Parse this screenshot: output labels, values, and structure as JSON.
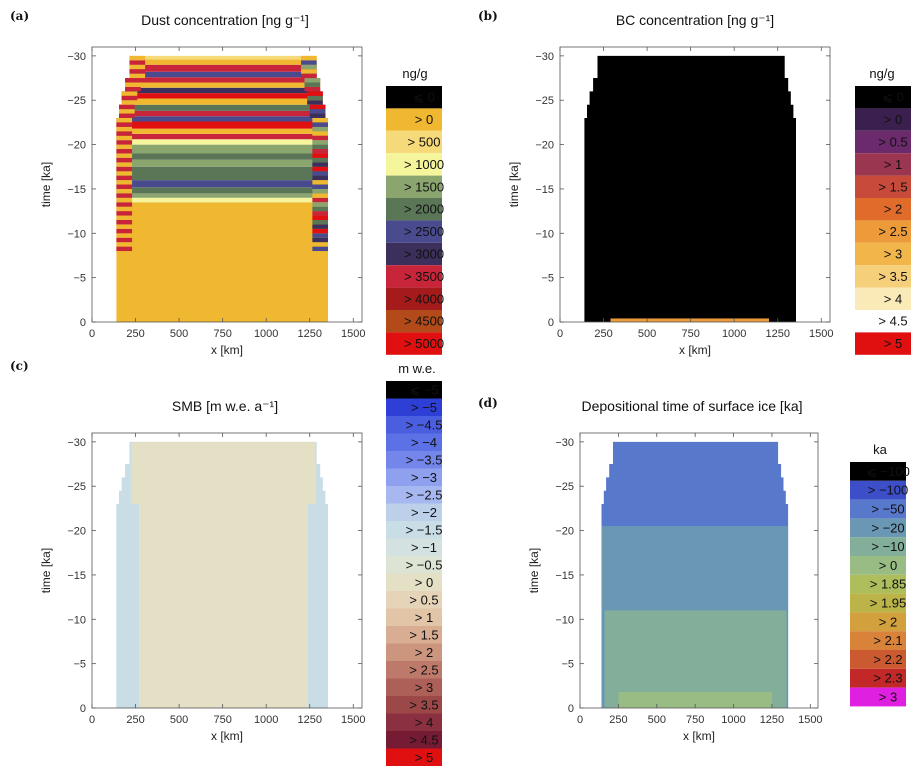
{
  "chart_data": [
    {
      "panel": "(a)",
      "type": "heatmap",
      "title": "Dust concentration [ng g⁻¹]",
      "xlabel": "x [km]",
      "ylabel": "time [ka]",
      "xlim": [
        0,
        1550
      ],
      "ylim": [
        0,
        -31
      ],
      "xticks": [
        "0",
        "250",
        "500",
        "750",
        "1000",
        "1250",
        "1500"
      ],
      "yticks": [
        "0",
        "−5",
        "−10",
        "−15",
        "−20",
        "−25",
        "−30"
      ],
      "legend_title": "ng/g",
      "legend": [
        {
          "label": "⩽ 0",
          "color": "#000000"
        },
        {
          "label": "> 0",
          "color": "#efb830"
        },
        {
          "label": "> 500",
          "color": "#f6d979"
        },
        {
          "label": "> 1000",
          "color": "#f5f59c"
        },
        {
          "label": "> 1500",
          "color": "#8aa56e"
        },
        {
          "label": "> 2000",
          "color": "#5a7656"
        },
        {
          "label": "> 2500",
          "color": "#4a4a8f"
        },
        {
          "label": "> 3000",
          "color": "#3c2f5c"
        },
        {
          "label": "> 3500",
          "color": "#c8253a"
        },
        {
          "label": "> 4000",
          "color": "#a51b1b"
        },
        {
          "label": "> 4500",
          "color": "#b24a19"
        },
        {
          "label": "> 5000",
          "color": "#e01010"
        }
      ],
      "bands": [
        {
          "from": 0,
          "to": 13.5,
          "color": "#efb830"
        },
        {
          "from": 13.5,
          "to": 14,
          "color": "#f5f59c"
        },
        {
          "from": 14,
          "to": 14.5,
          "color": "#8aa56e"
        },
        {
          "from": 14.5,
          "to": 15.2,
          "color": "#5a7656"
        },
        {
          "from": 15.2,
          "to": 16,
          "color": "#4a4a8f"
        },
        {
          "from": 16,
          "to": 17.5,
          "color": "#5a7656"
        },
        {
          "from": 17.5,
          "to": 18.3,
          "color": "#8aa56e"
        },
        {
          "from": 18.3,
          "to": 19,
          "color": "#5a7656"
        },
        {
          "from": 19,
          "to": 20,
          "color": "#8aa56e"
        },
        {
          "from": 20,
          "to": 20.6,
          "color": "#f5f59c"
        },
        {
          "from": 20.6,
          "to": 21.2,
          "color": "#c8253a"
        },
        {
          "from": 21.2,
          "to": 21.8,
          "color": "#efb830"
        },
        {
          "from": 21.8,
          "to": 22.6,
          "color": "#e01010"
        },
        {
          "from": 22.6,
          "to": 23.2,
          "color": "#4a4a8f"
        },
        {
          "from": 23.2,
          "to": 23.8,
          "color": "#c8253a"
        },
        {
          "from": 23.8,
          "to": 24.5,
          "color": "#5a7656"
        },
        {
          "from": 24.5,
          "to": 25.2,
          "color": "#efb830"
        },
        {
          "from": 25.2,
          "to": 25.8,
          "color": "#e01010"
        },
        {
          "from": 25.8,
          "to": 26.4,
          "color": "#3c2f5c"
        },
        {
          "from": 26.4,
          "to": 27,
          "color": "#efb830"
        },
        {
          "from": 27,
          "to": 27.6,
          "color": "#c8253a"
        },
        {
          "from": 27.6,
          "to": 28.2,
          "color": "#4a4a8f"
        },
        {
          "from": 28.2,
          "to": 29,
          "color": "#c8253a"
        },
        {
          "from": 29,
          "to": 29.6,
          "color": "#efb830"
        },
        {
          "from": 29.6,
          "to": 30,
          "color": "#f6d979"
        }
      ]
    },
    {
      "panel": "(b)",
      "type": "heatmap",
      "title": "BC concentration [ng g⁻¹]",
      "xlabel": "x [km]",
      "ylabel": "time [ka]",
      "xlim": [
        0,
        1550
      ],
      "ylim": [
        0,
        -31
      ],
      "xticks": [
        "0",
        "250",
        "500",
        "750",
        "1000",
        "1250",
        "1500"
      ],
      "yticks": [
        "0",
        "−5",
        "−10",
        "−15",
        "−20",
        "−25",
        "−30"
      ],
      "legend_title": "ng/g",
      "legend": [
        {
          "label": "⩽ 0",
          "color": "#000000"
        },
        {
          "label": "> 0",
          "color": "#3b1f4f"
        },
        {
          "label": "> 0.5",
          "color": "#6a2a6b"
        },
        {
          "label": "> 1",
          "color": "#9b3650"
        },
        {
          "label": "> 1.5",
          "color": "#c84a3a"
        },
        {
          "label": "> 2",
          "color": "#e06b2a"
        },
        {
          "label": "> 2.5",
          "color": "#ec9a3a"
        },
        {
          "label": "> 3",
          "color": "#f2b54a"
        },
        {
          "label": "> 3.5",
          "color": "#f6cf7a"
        },
        {
          "label": "> 4",
          "color": "#faeab8"
        },
        {
          "label": "> 4.5",
          "color": "#ffffff"
        },
        {
          "label": "> 5",
          "color": "#e01010"
        }
      ],
      "bands": [
        {
          "from": 0,
          "to": 0.4,
          "color": "#ec9a3a"
        },
        {
          "from": 0.4,
          "to": 30,
          "color": "#000000"
        }
      ]
    },
    {
      "panel": "(c)",
      "type": "heatmap",
      "title": "SMB [m w.e. a⁻¹]",
      "xlabel": "x [km]",
      "ylabel": "time [ka]",
      "xlim": [
        0,
        1550
      ],
      "ylim": [
        0,
        -31
      ],
      "xticks": [
        "0",
        "250",
        "500",
        "750",
        "1000",
        "1250",
        "1500"
      ],
      "yticks": [
        "0",
        "−5",
        "−10",
        "−15",
        "−20",
        "−25",
        "−30"
      ],
      "legend_title": "m w.e.",
      "legend": [
        {
          "label": "⩽ −5",
          "color": "#000000"
        },
        {
          "label": "> −5",
          "color": "#2e3fd6"
        },
        {
          "label": "> −4.5",
          "color": "#4a5ee0"
        },
        {
          "label": "> −4",
          "color": "#5c71e6"
        },
        {
          "label": "> −3.5",
          "color": "#7486ea"
        },
        {
          "label": "> −3",
          "color": "#8ea0ee"
        },
        {
          "label": "> −2.5",
          "color": "#a6b8ef"
        },
        {
          "label": "> −2",
          "color": "#bcd0ea"
        },
        {
          "label": "> −1.5",
          "color": "#c8dde6"
        },
        {
          "label": "> −1",
          "color": "#d3e1e0"
        },
        {
          "label": "> −0.5",
          "color": "#dde4d4"
        },
        {
          "label": "> 0",
          "color": "#e4e0c6"
        },
        {
          "label": "> 0.5",
          "color": "#e6d4b8"
        },
        {
          "label": "> 1",
          "color": "#e2c4a6"
        },
        {
          "label": "> 1.5",
          "color": "#d8ad92"
        },
        {
          "label": "> 2",
          "color": "#cc957e"
        },
        {
          "label": "> 2.5",
          "color": "#bd7a6a"
        },
        {
          "label": "> 3",
          "color": "#ad6058"
        },
        {
          "label": "> 3.5",
          "color": "#9c4848"
        },
        {
          "label": "> 4",
          "color": "#8a3040"
        },
        {
          "label": "> 4.5",
          "color": "#751c34"
        },
        {
          "label": "> 5",
          "color": "#e01010"
        }
      ]
    },
    {
      "panel": "(d)",
      "type": "heatmap",
      "title": "Depositional time of surface ice [ka]",
      "xlabel": "x [km]",
      "ylabel": "time [ka]",
      "xlim": [
        0,
        1550
      ],
      "ylim": [
        0,
        -31
      ],
      "xticks": [
        "0",
        "250",
        "500",
        "750",
        "1000",
        "1250",
        "1500"
      ],
      "yticks": [
        "0",
        "−5",
        "−10",
        "−15",
        "−20",
        "−25",
        "−30"
      ],
      "legend_title": "ka",
      "legend": [
        {
          "label": "⩽ −100",
          "color": "#000000"
        },
        {
          "label": "> −100",
          "color": "#3d4fc8"
        },
        {
          "label": "> −50",
          "color": "#5878cc"
        },
        {
          "label": "> −20",
          "color": "#6a98b4"
        },
        {
          "label": "> −10",
          "color": "#82ae9a"
        },
        {
          "label": "> 0",
          "color": "#98bc84"
        },
        {
          "label": "> 1.85",
          "color": "#aebe5c"
        },
        {
          "label": "> 1.95",
          "color": "#bcb448"
        },
        {
          "label": "> 2",
          "color": "#d2a03c"
        },
        {
          "label": "> 2.1",
          "color": "#d8823a"
        },
        {
          "label": "> 2.2",
          "color": "#cc5a30"
        },
        {
          "label": "> 2.3",
          "color": "#c22828"
        },
        {
          "label": "> 3",
          "color": "#e020e0"
        }
      ]
    }
  ]
}
